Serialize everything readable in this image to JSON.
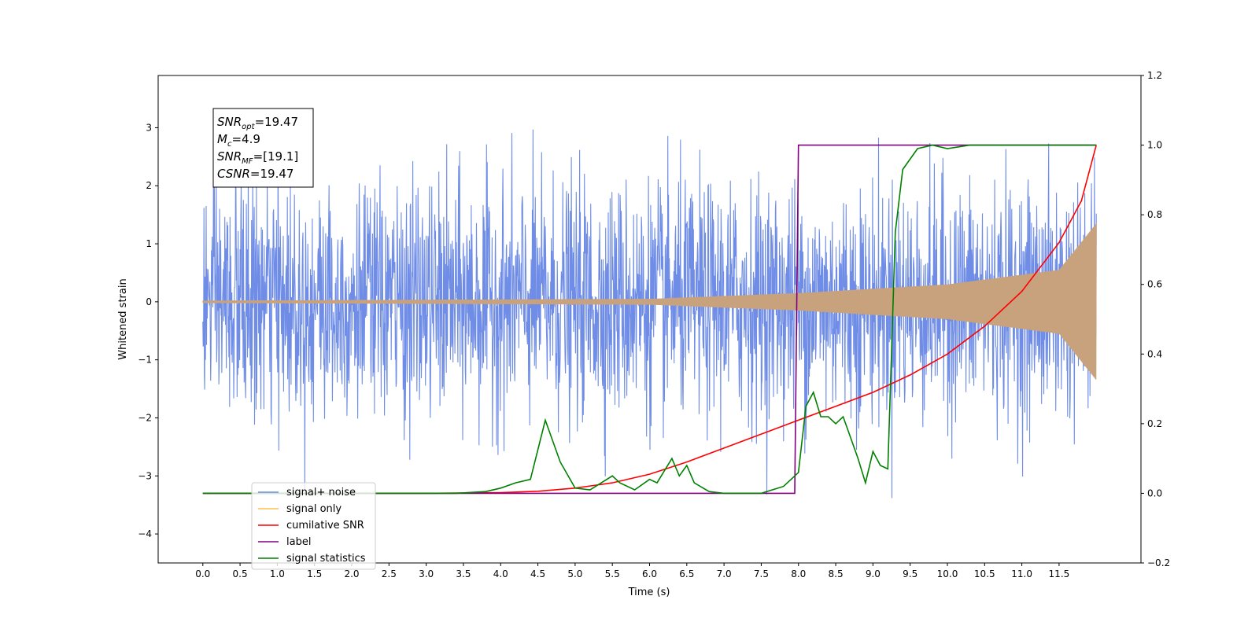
{
  "chart_data": {
    "type": "line",
    "xlabel": "Time (s)",
    "ylabel": "Whitened strain",
    "xlim": [
      -0.6,
      12.6
    ],
    "ylim": [
      -4.5,
      3.9
    ],
    "y2lim": [
      -0.2,
      1.2
    ],
    "x_ticks": [
      "0.0",
      "0.5",
      "1.0",
      "1.5",
      "2.0",
      "2.5",
      "3.0",
      "3.5",
      "4.0",
      "4.5",
      "5.0",
      "5.5",
      "6.0",
      "6.5",
      "7.0",
      "7.5",
      "8.0",
      "8.5",
      "9.0",
      "9.5",
      "10.0",
      "10.5",
      "11.0",
      "11.5"
    ],
    "y_ticks": [
      "−4",
      "−3",
      "−2",
      "−1",
      "0",
      "1",
      "2",
      "3"
    ],
    "y2_ticks": [
      "−0.2",
      "0.0",
      "0.2",
      "0.4",
      "0.6",
      "0.8",
      "1.0",
      "1.2"
    ],
    "grid": false,
    "legend_position": "lower-left",
    "annotation_lines": [
      {
        "name": "SNR",
        "sub": "opt",
        "value": "=19.47"
      },
      {
        "name": "M",
        "sub": "c",
        "value": "=4.9"
      },
      {
        "name": "SNR",
        "sub": "MF",
        "value": "=[19.1]"
      },
      {
        "name": "CSNR",
        "sub": "",
        "value": "=19.47"
      }
    ],
    "series": [
      {
        "name": "signal+ noise",
        "axis": "left",
        "color": "#6f8de6",
        "kind": "noise",
        "x_range": [
          0,
          12
        ],
        "std": 1.0,
        "peak_envelope": 3.5
      },
      {
        "name": "signal only",
        "axis": "left",
        "color": "#c8a27c",
        "kind": "chirp",
        "x_range": [
          0,
          12
        ],
        "amplitude": [
          [
            0,
            0.02
          ],
          [
            6,
            0.05
          ],
          [
            8,
            0.15
          ],
          [
            10,
            0.3
          ],
          [
            11.5,
            0.55
          ],
          [
            12,
            1.35
          ]
        ]
      },
      {
        "name": "cumilative SNR",
        "axis": "right",
        "color": "#ff0000",
        "x": [
          0,
          3,
          4,
          4.5,
          5,
          5.5,
          6,
          6.5,
          7,
          7.5,
          8,
          8.5,
          9,
          9.5,
          10,
          10.5,
          11,
          11.5,
          11.8,
          12
        ],
        "y": [
          0,
          0,
          0.002,
          0.006,
          0.015,
          0.03,
          0.055,
          0.09,
          0.13,
          0.17,
          0.21,
          0.25,
          0.29,
          0.34,
          0.4,
          0.48,
          0.58,
          0.72,
          0.84,
          1.0
        ]
      },
      {
        "name": "label",
        "axis": "right",
        "color": "#800080",
        "x": [
          0,
          7.95,
          8.0,
          12
        ],
        "y": [
          0,
          0,
          1,
          1
        ]
      },
      {
        "name": "signal statistics",
        "axis": "right",
        "color": "#008000",
        "x": [
          0,
          3.4,
          3.8,
          4.0,
          4.2,
          4.4,
          4.6,
          4.8,
          5.0,
          5.2,
          5.5,
          5.6,
          5.8,
          6.0,
          6.1,
          6.3,
          6.4,
          6.5,
          6.6,
          6.8,
          7.0,
          7.5,
          7.8,
          8.0,
          8.1,
          8.2,
          8.3,
          8.4,
          8.5,
          8.6,
          8.7,
          8.8,
          8.9,
          9.0,
          9.1,
          9.2,
          9.3,
          9.4,
          9.6,
          9.8,
          10.0,
          10.3,
          12
        ],
        "y": [
          0,
          0,
          0.005,
          0.015,
          0.03,
          0.04,
          0.21,
          0.09,
          0.015,
          0.01,
          0.05,
          0.03,
          0.01,
          0.04,
          0.03,
          0.1,
          0.05,
          0.08,
          0.03,
          0.005,
          0,
          0,
          0.02,
          0.06,
          0.25,
          0.29,
          0.22,
          0.22,
          0.2,
          0.22,
          0.16,
          0.1,
          0.03,
          0.12,
          0.08,
          0.07,
          0.75,
          0.93,
          0.99,
          1.0,
          0.99,
          1.0,
          1.0
        ]
      }
    ],
    "legend": [
      {
        "label": "signal+ noise",
        "color": "#6f8de6"
      },
      {
        "label": "signal only",
        "color": "#ffc04d"
      },
      {
        "label": "cumilative SNR",
        "color": "#ff0000"
      },
      {
        "label": "label",
        "color": "#800080"
      },
      {
        "label": "signal statistics",
        "color": "#008000"
      }
    ]
  }
}
